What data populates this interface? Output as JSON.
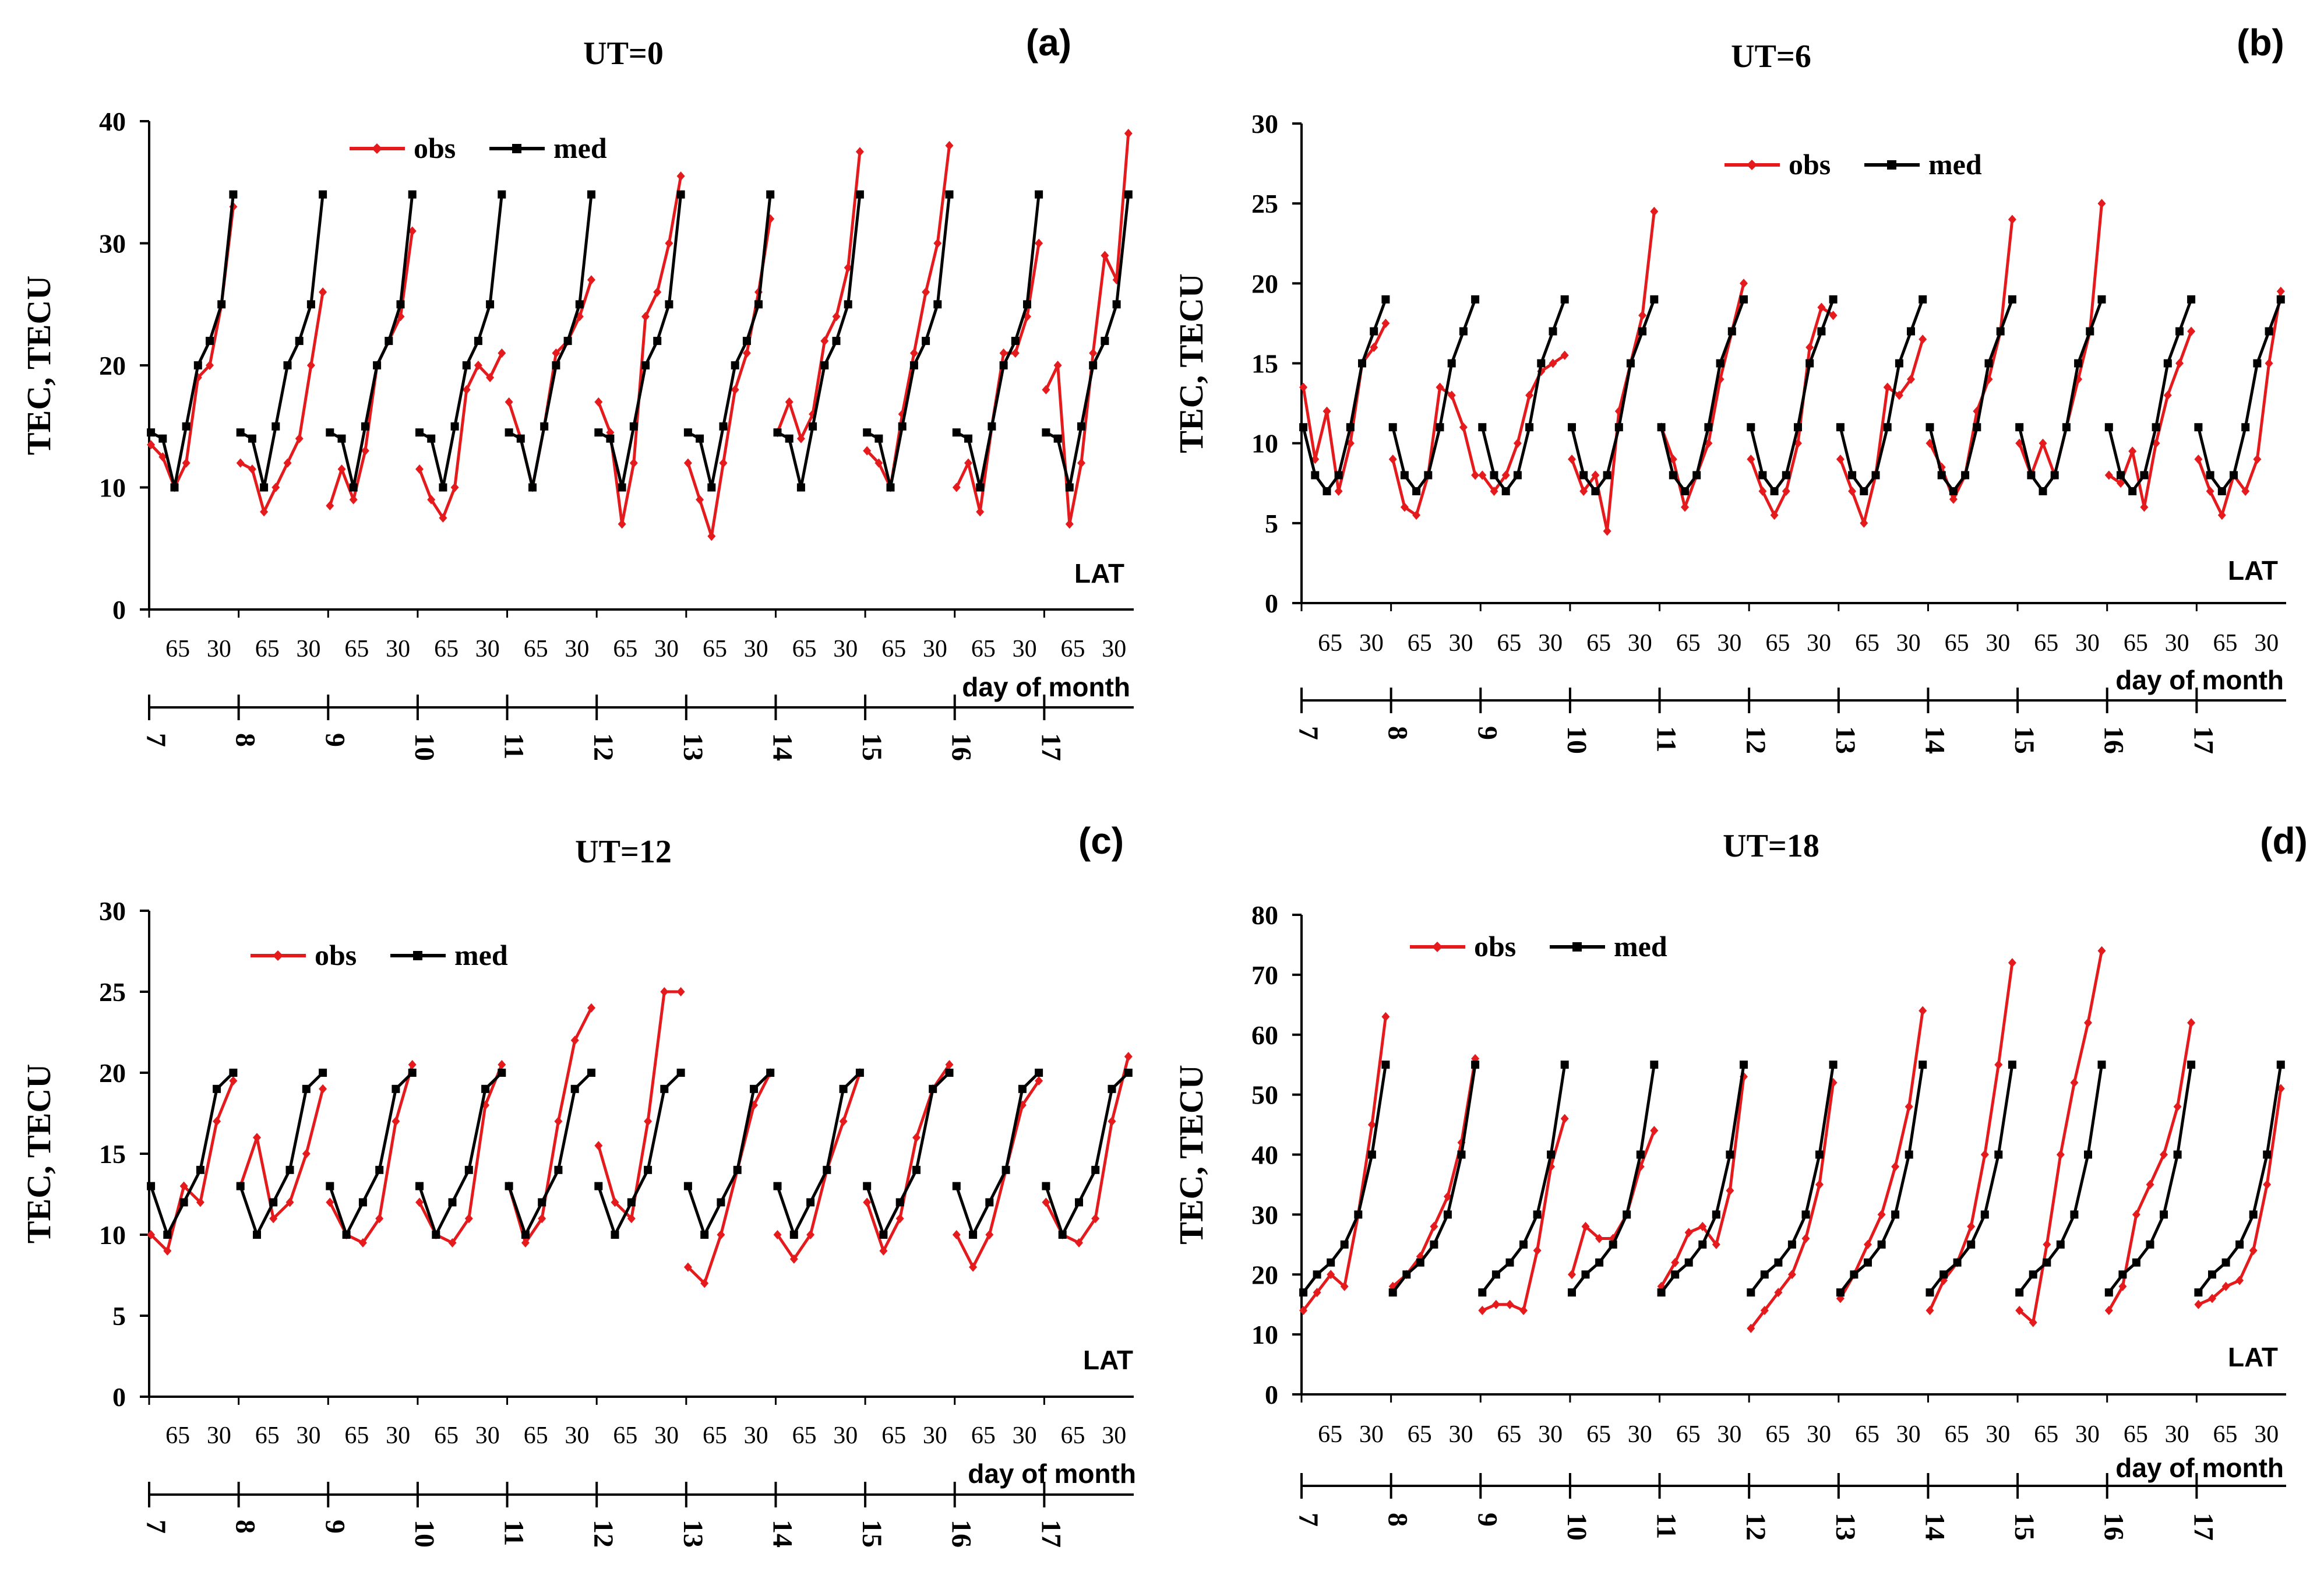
{
  "colors": {
    "obs": "#e41a1c",
    "med": "#000000",
    "axis": "#000000"
  },
  "chart_data": [
    {
      "type": "line",
      "panel_label": "(a)",
      "title": "UT=0",
      "ylabel": "TEC, TECU",
      "xlabel": "LAT",
      "x2label": "day of month",
      "ylim": [
        0,
        40
      ],
      "yticks": [
        0,
        10,
        20,
        30,
        40
      ],
      "lat_ticks": [
        "65",
        "30"
      ],
      "days": [
        "7",
        "8",
        "9",
        "10",
        "11",
        "12",
        "13",
        "14",
        "15",
        "16",
        "17"
      ],
      "legend": {
        "position": "top-left",
        "entries": [
          "obs",
          "med"
        ]
      },
      "series": [
        {
          "name": "obs",
          "values": [
            [
              13.5,
              12.5,
              10,
              12,
              19,
              20,
              25,
              33
            ],
            [
              12,
              11.5,
              8,
              10,
              12,
              14,
              20,
              26
            ],
            [
              8.5,
              11.5,
              9,
              13,
              20,
              22,
              24,
              31
            ],
            [
              11.5,
              9,
              7.5,
              10,
              18,
              20,
              19,
              21
            ],
            [
              17,
              14,
              10,
              15,
              21,
              22,
              24,
              27
            ],
            [
              17,
              14.5,
              7,
              12,
              24,
              26,
              30,
              35.5
            ],
            [
              12,
              9,
              6,
              12,
              18,
              21,
              26,
              32
            ],
            [
              14.5,
              17,
              14,
              16,
              22,
              24,
              28,
              37.5
            ],
            [
              13,
              12,
              10,
              16,
              21,
              26,
              30,
              38
            ],
            [
              10,
              12,
              8,
              15,
              21,
              21,
              24,
              30
            ],
            [
              18,
              20,
              7,
              12,
              21,
              29,
              27,
              39
            ]
          ]
        },
        {
          "name": "med",
          "values": [
            [
              14.5,
              14,
              10,
              15,
              20,
              22,
              25,
              34
            ],
            [
              14.5,
              14,
              10,
              15,
              20,
              22,
              25,
              34
            ],
            [
              14.5,
              14,
              10,
              15,
              20,
              22,
              25,
              34
            ],
            [
              14.5,
              14,
              10,
              15,
              20,
              22,
              25,
              34
            ],
            [
              14.5,
              14,
              10,
              15,
              20,
              22,
              25,
              34
            ],
            [
              14.5,
              14,
              10,
              15,
              20,
              22,
              25,
              34
            ],
            [
              14.5,
              14,
              10,
              15,
              20,
              22,
              25,
              34
            ],
            [
              14.5,
              14,
              10,
              15,
              20,
              22,
              25,
              34
            ],
            [
              14.5,
              14,
              10,
              15,
              20,
              22,
              25,
              34
            ],
            [
              14.5,
              14,
              10,
              15,
              20,
              22,
              25,
              34
            ],
            [
              14.5,
              14,
              10,
              15,
              20,
              22,
              25,
              34
            ]
          ]
        }
      ]
    },
    {
      "type": "line",
      "panel_label": "(b)",
      "title": "UT=6",
      "ylabel": "TEC, TECU",
      "xlabel": "LAT",
      "x2label": "day of month",
      "ylim": [
        0,
        30
      ],
      "yticks": [
        0,
        5,
        10,
        15,
        20,
        25,
        30
      ],
      "lat_ticks": [
        "65",
        "30"
      ],
      "days": [
        "7",
        "8",
        "9",
        "10",
        "11",
        "12",
        "13",
        "14",
        "15",
        "16",
        "17"
      ],
      "legend": {
        "position": "top-center",
        "entries": [
          "obs",
          "med"
        ]
      },
      "series": [
        {
          "name": "obs",
          "values": [
            [
              13.5,
              9,
              12,
              7,
              10,
              15,
              16,
              17.5
            ],
            [
              9,
              6,
              5.5,
              8,
              13.5,
              13,
              11,
              8
            ],
            [
              8,
              7,
              8,
              10,
              13,
              14.5,
              15,
              15.5
            ],
            [
              9,
              7,
              8,
              4.5,
              12,
              15,
              18,
              24.5
            ],
            [
              11,
              9,
              6,
              8,
              10,
              14,
              17,
              20
            ],
            [
              9,
              7,
              5.5,
              7,
              10,
              16,
              18.5,
              18
            ],
            [
              9,
              7,
              5,
              8,
              13.5,
              13,
              14,
              16.5
            ],
            [
              10,
              8.5,
              6.5,
              8,
              12,
              14,
              17,
              24
            ],
            [
              10,
              8,
              10,
              8,
              11,
              14,
              17,
              25
            ],
            [
              8,
              7.5,
              9.5,
              6,
              10,
              13,
              15,
              17
            ],
            [
              9,
              7,
              5.5,
              8,
              7,
              9,
              15,
              19.5
            ]
          ]
        },
        {
          "name": "med",
          "values": [
            [
              11,
              8,
              7,
              8,
              11,
              15,
              17,
              19
            ],
            [
              11,
              8,
              7,
              8,
              11,
              15,
              17,
              19
            ],
            [
              11,
              8,
              7,
              8,
              11,
              15,
              17,
              19
            ],
            [
              11,
              8,
              7,
              8,
              11,
              15,
              17,
              19
            ],
            [
              11,
              8,
              7,
              8,
              11,
              15,
              17,
              19
            ],
            [
              11,
              8,
              7,
              8,
              11,
              15,
              17,
              19
            ],
            [
              11,
              8,
              7,
              8,
              11,
              15,
              17,
              19
            ],
            [
              11,
              8,
              7,
              8,
              11,
              15,
              17,
              19
            ],
            [
              11,
              8,
              7,
              8,
              11,
              15,
              17,
              19
            ],
            [
              11,
              8,
              7,
              8,
              11,
              15,
              17,
              19
            ],
            [
              11,
              8,
              7,
              8,
              11,
              15,
              17,
              19
            ]
          ]
        }
      ]
    },
    {
      "type": "line",
      "panel_label": "(c)",
      "title": "UT=12",
      "ylabel": "TEC, TECU",
      "xlabel": "LAT",
      "x2label": "day of month",
      "ylim": [
        0,
        30
      ],
      "yticks": [
        0,
        5,
        10,
        15,
        20,
        25,
        30
      ],
      "lat_ticks": [
        "65",
        "30"
      ],
      "days": [
        "7",
        "8",
        "9",
        "10",
        "11",
        "12",
        "13",
        "14",
        "15",
        "16",
        "17"
      ],
      "legend": {
        "position": "top-left",
        "entries": [
          "obs",
          "med"
        ]
      },
      "series": [
        {
          "name": "obs",
          "values": [
            [
              10,
              9,
              13,
              12,
              17,
              19.5
            ],
            [
              13,
              16,
              11,
              12,
              15,
              19
            ],
            [
              12,
              10,
              9.5,
              11,
              17,
              20.5
            ],
            [
              12,
              10,
              9.5,
              11,
              18,
              20.5
            ],
            [
              13,
              9.5,
              11,
              17,
              22,
              24
            ],
            [
              15.5,
              12,
              11,
              17,
              25,
              25
            ],
            [
              8,
              7,
              10,
              14,
              18,
              20
            ],
            [
              10,
              8.5,
              10,
              14,
              17,
              20
            ],
            [
              12,
              9,
              11,
              16,
              19,
              20.5
            ],
            [
              10,
              8,
              10,
              14,
              18,
              19.5
            ],
            [
              12,
              10,
              9.5,
              11,
              17,
              21
            ]
          ]
        },
        {
          "name": "med",
          "values": [
            [
              13,
              10,
              12,
              14,
              19,
              20
            ],
            [
              13,
              10,
              12,
              14,
              19,
              20
            ],
            [
              13,
              10,
              12,
              14,
              19,
              20
            ],
            [
              13,
              10,
              12,
              14,
              19,
              20
            ],
            [
              13,
              10,
              12,
              14,
              19,
              20
            ],
            [
              13,
              10,
              12,
              14,
              19,
              20
            ],
            [
              13,
              10,
              12,
              14,
              19,
              20
            ],
            [
              13,
              10,
              12,
              14,
              19,
              20
            ],
            [
              13,
              10,
              12,
              14,
              19,
              20
            ],
            [
              13,
              10,
              12,
              14,
              19,
              20
            ],
            [
              13,
              10,
              12,
              14,
              19,
              20
            ]
          ]
        }
      ]
    },
    {
      "type": "line",
      "panel_label": "(d)",
      "title": "UT=18",
      "ylabel": "TEC, TECU",
      "xlabel": "LAT",
      "x2label": "day of month",
      "ylim": [
        0,
        80
      ],
      "yticks": [
        0,
        10,
        20,
        30,
        40,
        50,
        60,
        70,
        80
      ],
      "lat_ticks": [
        "65",
        "30"
      ],
      "days": [
        "7",
        "8",
        "9",
        "10",
        "11",
        "12",
        "13",
        "14",
        "15",
        "16",
        "17"
      ],
      "legend": {
        "position": "top-left",
        "entries": [
          "obs",
          "med"
        ]
      },
      "series": [
        {
          "name": "obs",
          "values": [
            [
              14,
              17,
              20,
              18,
              30,
              45,
              63
            ],
            [
              18,
              20,
              23,
              28,
              33,
              42,
              56
            ],
            [
              14,
              15,
              15,
              14,
              24,
              38,
              46
            ],
            [
              20,
              28,
              26,
              26,
              30,
              38,
              44
            ],
            [
              18,
              22,
              27,
              28,
              25,
              34,
              53
            ],
            [
              11,
              14,
              17,
              20,
              26,
              35,
              52
            ],
            [
              16,
              20,
              25,
              30,
              38,
              48,
              64
            ],
            [
              14,
              19,
              22,
              28,
              40,
              55,
              72
            ],
            [
              14,
              12,
              25,
              40,
              52,
              62,
              74
            ],
            [
              14,
              18,
              30,
              35,
              40,
              48,
              62
            ],
            [
              15,
              16,
              18,
              19,
              24,
              35,
              51
            ]
          ]
        },
        {
          "name": "med",
          "values": [
            [
              17,
              20,
              22,
              25,
              30,
              40,
              55
            ],
            [
              17,
              20,
              22,
              25,
              30,
              40,
              55
            ],
            [
              17,
              20,
              22,
              25,
              30,
              40,
              55
            ],
            [
              17,
              20,
              22,
              25,
              30,
              40,
              55
            ],
            [
              17,
              20,
              22,
              25,
              30,
              40,
              55
            ],
            [
              17,
              20,
              22,
              25,
              30,
              40,
              55
            ],
            [
              17,
              20,
              22,
              25,
              30,
              40,
              55
            ],
            [
              17,
              20,
              22,
              25,
              30,
              40,
              55
            ],
            [
              17,
              20,
              22,
              25,
              30,
              40,
              55
            ],
            [
              17,
              20,
              22,
              25,
              30,
              40,
              55
            ],
            [
              17,
              20,
              22,
              25,
              30,
              40,
              55
            ]
          ]
        }
      ]
    }
  ]
}
